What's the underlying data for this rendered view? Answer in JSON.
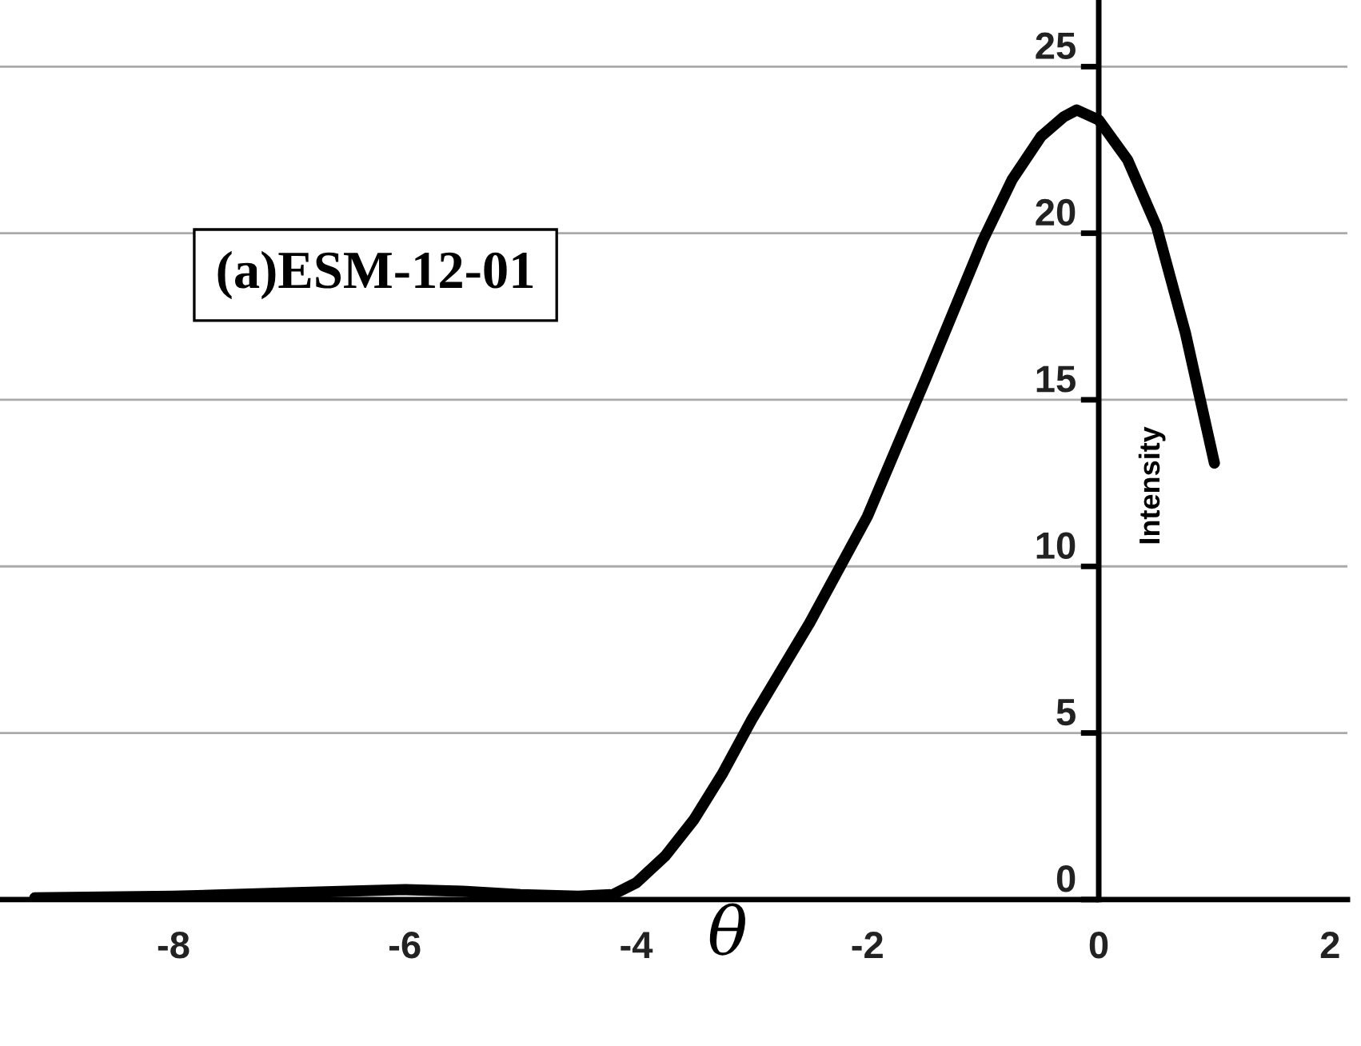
{
  "chart_data": {
    "type": "line",
    "xlabel": "θ",
    "ylabel": "Intensity",
    "annotations": [
      "(a)ESM-12-01"
    ],
    "x": [
      -9.2,
      -8,
      -7,
      -6,
      -5.5,
      -5,
      -4.5,
      -4.2,
      -4,
      -3.75,
      -3.5,
      -3.25,
      -3,
      -2.5,
      -2,
      -1.5,
      -1,
      -0.75,
      -0.5,
      -0.3,
      -0.19,
      0,
      0.25,
      0.5,
      0.75,
      1
    ],
    "series": [
      {
        "color": "#000000",
        "values": [
          0.05,
          0.1,
          0.2,
          0.3,
          0.25,
          0.15,
          0.1,
          0.15,
          0.5,
          1.3,
          2.4,
          3.8,
          5.4,
          8.3,
          11.5,
          15.6,
          19.8,
          21.6,
          22.9,
          23.5,
          23.7,
          23.4,
          22.2,
          20.2,
          17.0,
          13.1
        ]
      }
    ],
    "xlim": [
      -9.5,
      2.15
    ],
    "ylim": [
      0,
      27
    ],
    "xticks": [
      -8,
      -6,
      -4,
      -2,
      0,
      2
    ],
    "yticks": [
      0,
      5,
      10,
      15,
      20,
      25
    ],
    "grid": "y",
    "legend": false,
    "marker": "none",
    "line_style": "solid"
  }
}
